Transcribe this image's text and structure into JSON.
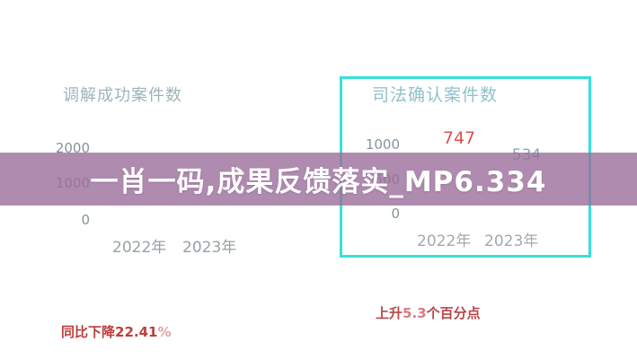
{
  "banner": {
    "text": "一肖一码,成果反馈落实_MP6.334",
    "background_color": "#9b6f9b",
    "text_color": "#ffffff"
  },
  "charts": {
    "left": {
      "title": "调解成功案件数",
      "y_ticks": [
        "2000",
        "1000",
        "0"
      ],
      "x_labels": [
        "2022年",
        "2023年"
      ],
      "annotation": {
        "prefix": "同比下降",
        "value": "22.41",
        "suffix": "%"
      }
    },
    "right": {
      "title": "司法确认案件数",
      "y_ticks": [
        "1000",
        "500",
        "0"
      ],
      "x_labels": [
        "2022年",
        "2023年"
      ],
      "values": [
        "747",
        "534"
      ],
      "value_colors": [
        "#dc5151",
        "#7fa9ba"
      ],
      "box_border_color": "#36e0dd",
      "annotation": {
        "prefix": "上升",
        "value": "5.3",
        "suffix": "个百分点"
      }
    }
  },
  "chart_data": [
    {
      "type": "bar",
      "title": "调解成功案件数",
      "categories": [
        "2022年",
        "2023年"
      ],
      "values": [
        null,
        null
      ],
      "ylim": [
        0,
        2000
      ],
      "yticks": [
        0,
        1000,
        2000
      ],
      "annotation": "同比下降22.41%",
      "grid": false,
      "legend": false
    },
    {
      "type": "bar",
      "title": "司法确认案件数",
      "categories": [
        "2022年",
        "2023年"
      ],
      "values": [
        747,
        534
      ],
      "ylim": [
        0,
        1000
      ],
      "yticks": [
        0,
        500,
        1000
      ],
      "annotation": "上升5.3个百分点",
      "grid": false,
      "legend": false
    }
  ]
}
